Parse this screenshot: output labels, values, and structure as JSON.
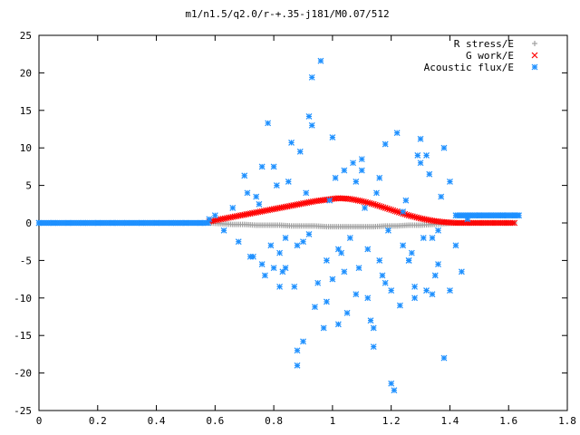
{
  "chart_data": {
    "type": "scatter",
    "title": "m1/n1.5/q2.0/r-+.35-j181/M0.07/512",
    "xlim": [
      0,
      1.8
    ],
    "ylim": [
      -25,
      25
    ],
    "xticks": [
      "0",
      "0.2",
      "0.4",
      "0.6",
      "0.8",
      "1",
      "1.2",
      "1.4",
      "1.6",
      "1.8"
    ],
    "yticks": [
      "25",
      "20",
      "15",
      "10",
      "5",
      "0",
      "-5",
      "-10",
      "-15",
      "-20",
      "-25"
    ],
    "grid": false,
    "legend_position": "top-right",
    "series": [
      {
        "name": "R stress/E",
        "marker": "+",
        "color": "#a0a0a0",
        "x": [
          0.58,
          0.62,
          0.66,
          0.7,
          0.74,
          0.78,
          0.82,
          0.86,
          0.9,
          0.94,
          0.98,
          1.02,
          1.06,
          1.1,
          1.14,
          1.18,
          1.22,
          1.26,
          1.3,
          1.34,
          1.38,
          1.42,
          1.46,
          1.5,
          1.54,
          1.58,
          1.62
        ],
        "y": [
          0.0,
          -0.1,
          -0.2,
          -0.2,
          -0.3,
          -0.3,
          -0.3,
          -0.4,
          -0.4,
          -0.4,
          -0.5,
          -0.5,
          -0.5,
          -0.5,
          -0.5,
          -0.4,
          -0.4,
          -0.3,
          -0.3,
          -0.2,
          -0.1,
          0.0,
          0.0,
          0.0,
          0.0,
          0.0,
          0.0
        ]
      },
      {
        "name": "G work/E",
        "marker": "x",
        "color": "#ff0000",
        "x": [
          0.58,
          0.62,
          0.66,
          0.7,
          0.74,
          0.78,
          0.82,
          0.86,
          0.9,
          0.94,
          0.98,
          1.02,
          1.06,
          1.1,
          1.14,
          1.18,
          1.22,
          1.26,
          1.3,
          1.34,
          1.38,
          1.42,
          1.46,
          1.5,
          1.54,
          1.58,
          1.62
        ],
        "y": [
          0.2,
          0.5,
          0.8,
          1.1,
          1.4,
          1.7,
          2.0,
          2.3,
          2.6,
          2.9,
          3.1,
          3.3,
          3.2,
          2.9,
          2.5,
          2.0,
          1.5,
          1.0,
          0.6,
          0.3,
          0.1,
          0.0,
          0.0,
          0.0,
          0.0,
          0.0,
          0.0
        ]
      },
      {
        "name": "Acoustic flux/E",
        "marker": "*",
        "color": "#1e90ff",
        "x": [
          0.0,
          0.05,
          0.1,
          0.15,
          0.2,
          0.25,
          0.3,
          0.35,
          0.4,
          0.45,
          0.5,
          0.55,
          0.58,
          0.6,
          0.63,
          0.66,
          0.68,
          0.7,
          0.72,
          0.74,
          0.76,
          0.78,
          0.8,
          0.82,
          0.84,
          0.86,
          0.88,
          0.9,
          0.92,
          0.93,
          0.94,
          0.96,
          0.98,
          1.0,
          1.02,
          1.04,
          1.06,
          1.08,
          1.1,
          1.12,
          1.14,
          1.16,
          1.18,
          1.2,
          1.21,
          1.22,
          1.24,
          1.26,
          1.28,
          1.3,
          1.32,
          1.34,
          1.36,
          1.38,
          1.4,
          1.42,
          1.44,
          1.46,
          1.5,
          1.54,
          1.58,
          1.62,
          1.635,
          0.76,
          0.77,
          0.85,
          0.88,
          0.9,
          0.92,
          0.95,
          0.97,
          0.99,
          1.01,
          1.03,
          1.05,
          1.07,
          1.09,
          1.11,
          1.13,
          1.15,
          1.17,
          1.19,
          1.23,
          1.25,
          1.27,
          1.29,
          1.31,
          1.33,
          1.35,
          1.37,
          0.71,
          0.73,
          0.75,
          0.79,
          0.81,
          0.83,
          0.87,
          0.89,
          0.91,
          1.0,
          1.04,
          1.08,
          1.12,
          1.16,
          1.2,
          1.24,
          1.28,
          1.32,
          1.36,
          1.4,
          0.88,
          0.93,
          0.98,
          1.02,
          1.1,
          1.14,
          1.18,
          1.26,
          1.3,
          1.34,
          1.38,
          0.84,
          0.82,
          0.8
        ],
        "y": [
          0,
          0,
          0,
          0,
          0,
          0,
          0,
          0,
          0,
          0,
          0,
          0,
          0.5,
          1.0,
          -1.0,
          2.0,
          -2.5,
          6.3,
          -4.5,
          3.5,
          -5.5,
          13.3,
          7.5,
          -8.5,
          -6.0,
          10.7,
          -3.0,
          -15.8,
          14.2,
          19.4,
          -11.2,
          21.6,
          -5.0,
          11.4,
          -3.5,
          -6.5,
          -2.0,
          5.5,
          7.0,
          -10.0,
          -16.5,
          -5.0,
          10.5,
          -21.4,
          -22.3,
          12.0,
          -3.0,
          -5.0,
          -8.5,
          11.2,
          -9.0,
          -2.0,
          -5.5,
          10.0,
          -9.0,
          -3.0,
          -6.5,
          0.5,
          1.0,
          1.0,
          1.0,
          1.0,
          1.0,
          7.5,
          -7.0,
          5.5,
          -17.0,
          -2.5,
          -1.5,
          -8.0,
          -14.0,
          3.0,
          6.0,
          -4.0,
          -12.0,
          8.0,
          -6.0,
          2.0,
          -13.0,
          4.0,
          -7.0,
          -1.0,
          -11.0,
          3.0,
          -4.0,
          9.0,
          -2.0,
          6.5,
          -7.0,
          3.5,
          4.0,
          -4.5,
          2.5,
          -3.0,
          5.0,
          -6.5,
          -8.5,
          9.5,
          4.0,
          -7.5,
          7.0,
          -9.5,
          -3.5,
          6.0,
          -9.0,
          1.5,
          -10.0,
          9.0,
          -1.0,
          5.5,
          -19.0,
          13.0,
          -10.5,
          -13.5,
          8.5,
          -14.0,
          -8.0,
          -5.0,
          8.0,
          -9.5,
          -18.0,
          -2.0,
          -4.0,
          -6.0
        ]
      }
    ]
  }
}
